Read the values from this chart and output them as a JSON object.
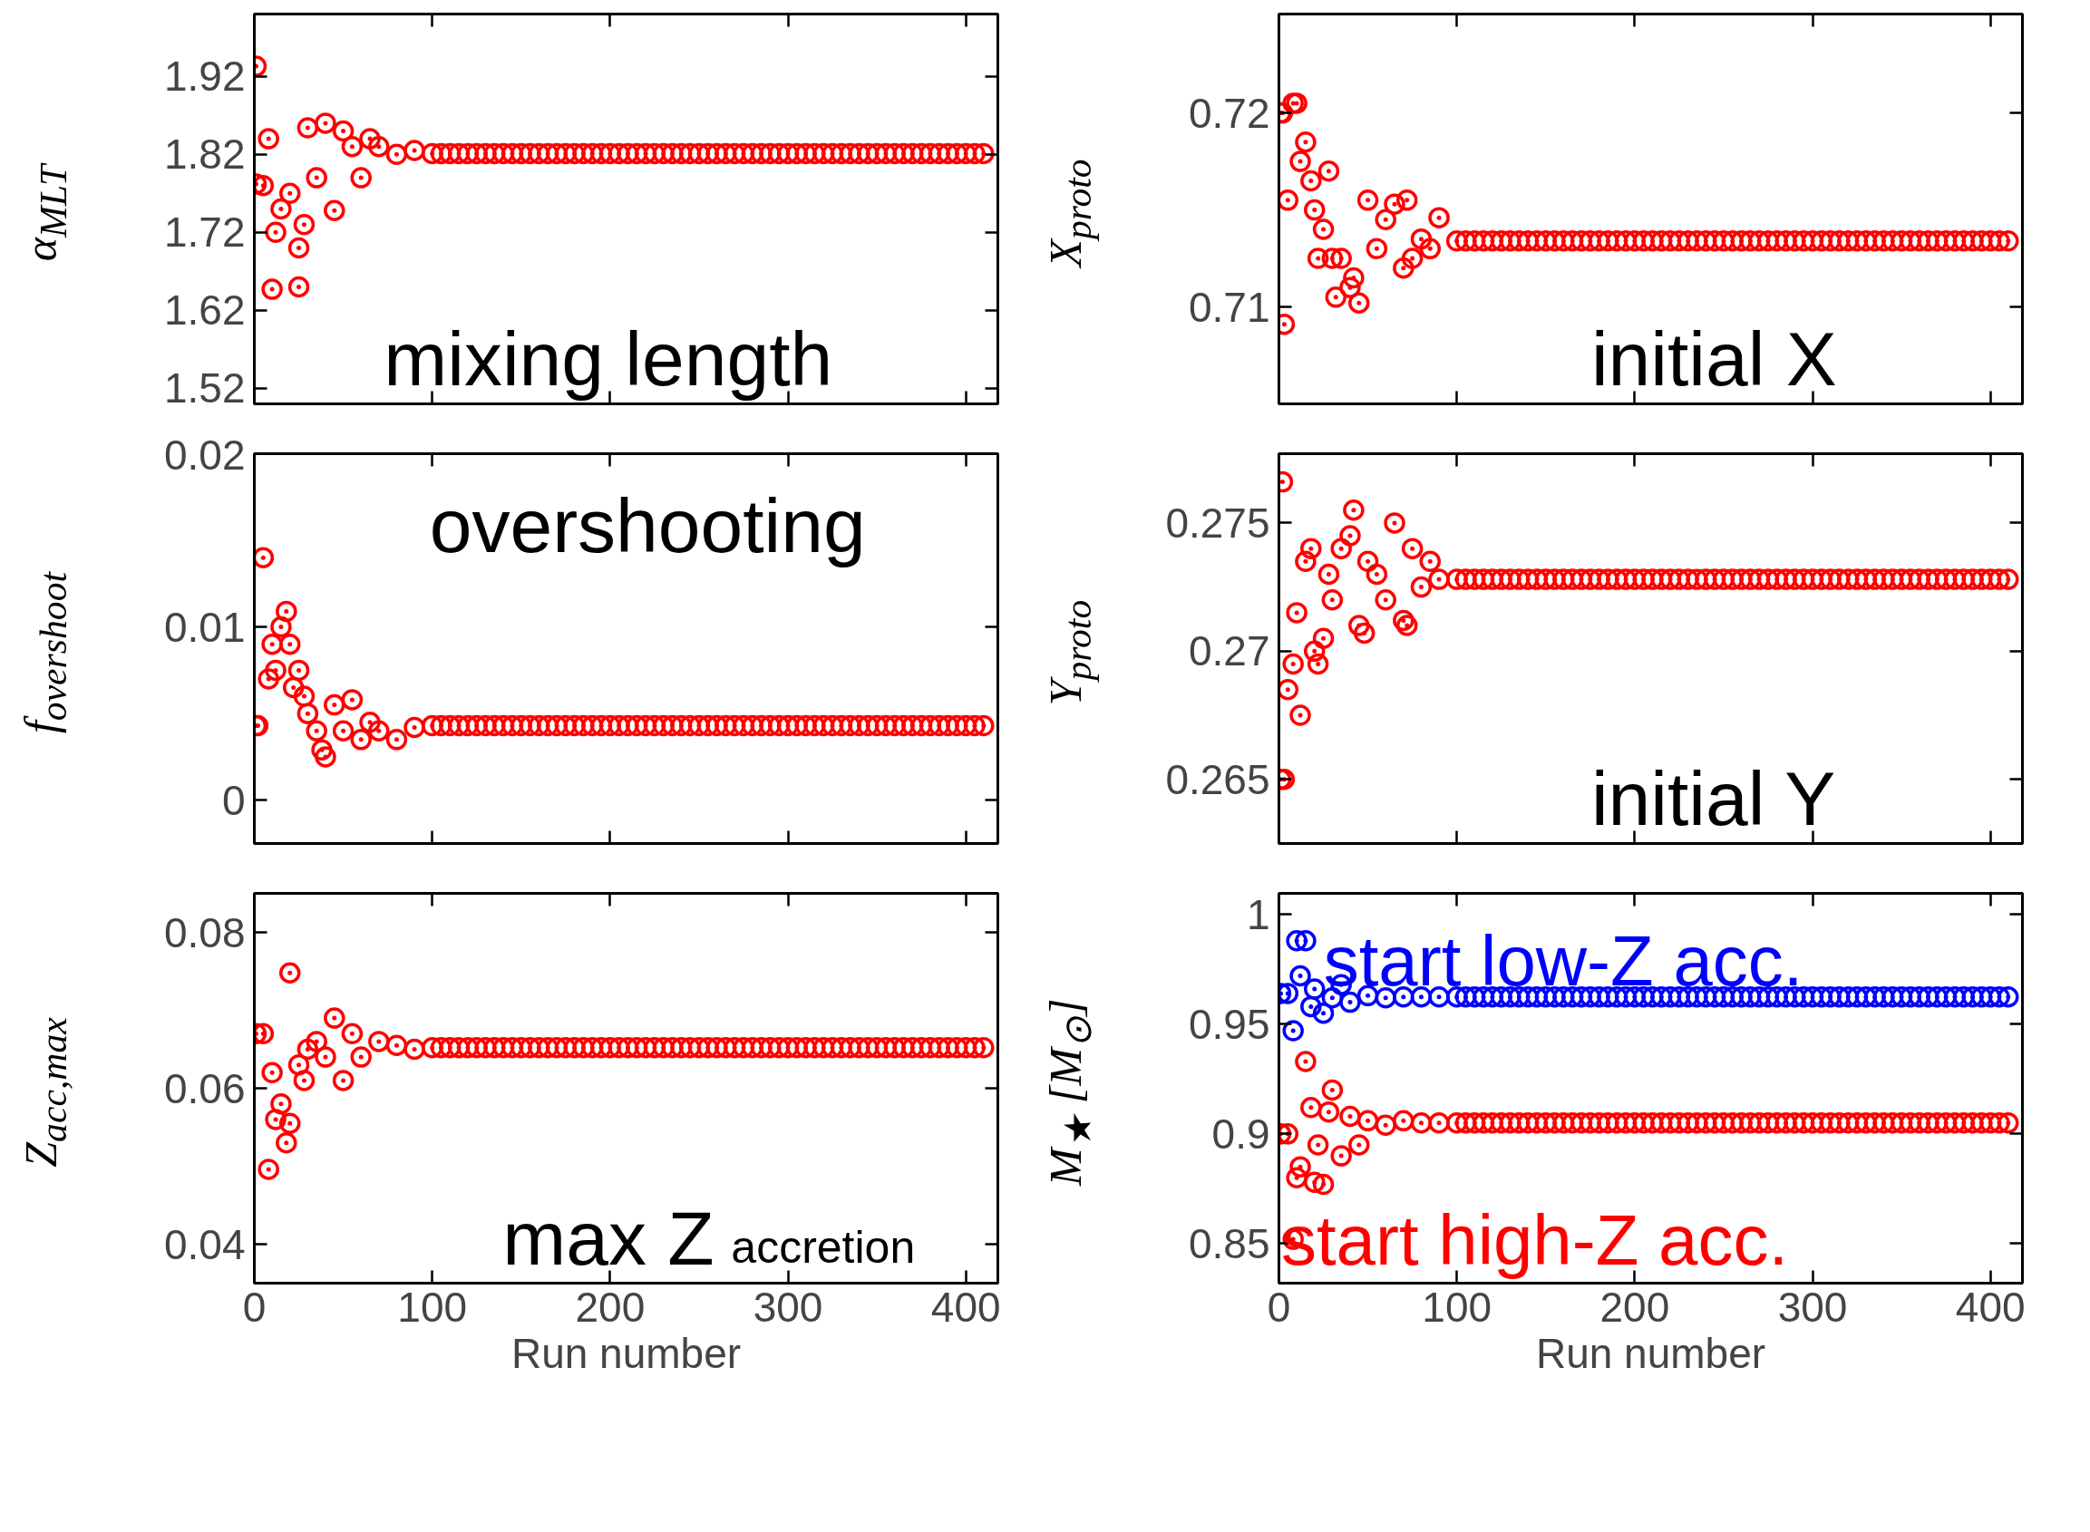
{
  "chart_data": [
    {
      "type": "scatter",
      "ylabel": "α$_{MLT}$",
      "annotations": [
        "mixing length"
      ],
      "marker": "circle",
      "color": "#ff0000",
      "tick_labels": "y",
      "xlim": [
        0,
        418
      ],
      "xticks": [
        0,
        100,
        200,
        300,
        400
      ],
      "ylim": [
        1.5,
        2.0
      ],
      "yticks": [
        1.52,
        1.62,
        1.72,
        1.82,
        1.92
      ],
      "x": [
        1,
        1,
        5,
        8,
        10,
        12,
        15,
        20,
        25,
        25,
        28,
        30,
        35,
        40,
        45,
        50,
        55,
        60,
        65,
        70,
        80,
        90,
        100,
        105,
        110,
        115,
        120,
        125,
        130,
        135,
        140,
        145,
        150,
        155,
        160,
        165,
        170,
        175,
        180,
        185,
        190,
        195,
        200,
        205,
        210,
        215,
        220,
        225,
        230,
        235,
        240,
        245,
        250,
        255,
        260,
        265,
        270,
        275,
        280,
        285,
        290,
        295,
        300,
        305,
        310,
        315,
        320,
        325,
        330,
        335,
        340,
        345,
        350,
        355,
        360,
        365,
        370,
        375,
        380,
        385,
        390,
        395,
        400,
        405,
        410
      ],
      "values": [
        1.933,
        1.782,
        1.78,
        1.84,
        1.647,
        1.72,
        1.75,
        1.77,
        1.65,
        1.7,
        1.73,
        1.854,
        1.79,
        1.86,
        1.748,
        1.85,
        1.83,
        1.79,
        1.84,
        1.83,
        1.82,
        1.825,
        1.821,
        1.821,
        1.821,
        1.821,
        1.821,
        1.821,
        1.821,
        1.821,
        1.821,
        1.821,
        1.821,
        1.821,
        1.821,
        1.821,
        1.821,
        1.821,
        1.821,
        1.821,
        1.821,
        1.821,
        1.821,
        1.821,
        1.821,
        1.821,
        1.821,
        1.821,
        1.821,
        1.821,
        1.821,
        1.821,
        1.821,
        1.821,
        1.821,
        1.821,
        1.821,
        1.821,
        1.821,
        1.821,
        1.821,
        1.821,
        1.821,
        1.821,
        1.821,
        1.821,
        1.821,
        1.821,
        1.821,
        1.821,
        1.821,
        1.821,
        1.821,
        1.821,
        1.821,
        1.821,
        1.821,
        1.821,
        1.821,
        1.821,
        1.821,
        1.821,
        1.821,
        1.821,
        1.821
      ]
    },
    {
      "type": "scatter",
      "ylabel": "X$_{proto}$",
      "annotations": [
        "initial X"
      ],
      "marker": "circle",
      "color": "#ff0000",
      "tick_labels": "y",
      "xlim": [
        0,
        418
      ],
      "xticks": [
        0,
        100,
        200,
        300,
        400
      ],
      "ylim": [
        0.705,
        0.7251
      ],
      "yticks": [
        0.71,
        0.72
      ],
      "x": [
        1,
        2,
        3,
        5,
        8,
        10,
        12,
        15,
        18,
        20,
        22,
        25,
        28,
        30,
        32,
        35,
        40,
        42,
        45,
        50,
        55,
        60,
        65,
        70,
        72,
        75,
        80,
        85,
        90,
        100,
        105,
        110,
        115,
        120,
        125,
        130,
        135,
        140,
        145,
        150,
        155,
        160,
        165,
        170,
        175,
        180,
        185,
        190,
        195,
        200,
        205,
        210,
        215,
        220,
        225,
        230,
        235,
        240,
        245,
        250,
        255,
        260,
        265,
        270,
        275,
        280,
        285,
        290,
        295,
        300,
        305,
        310,
        315,
        320,
        325,
        330,
        335,
        340,
        345,
        350,
        355,
        360,
        365,
        370,
        375,
        380,
        385,
        390,
        395,
        400,
        405,
        410
      ],
      "values": [
        0.72,
        0.72,
        0.7091,
        0.7155,
        0.7205,
        0.7205,
        0.7175,
        0.7185,
        0.7165,
        0.715,
        0.7125,
        0.714,
        0.717,
        0.7125,
        0.7105,
        0.7125,
        0.711,
        0.7115,
        0.7102,
        0.7155,
        0.713,
        0.7145,
        0.7153,
        0.712,
        0.7155,
        0.7125,
        0.7135,
        0.713,
        0.7146,
        0.7134,
        0.7134,
        0.7134,
        0.7134,
        0.7134,
        0.7134,
        0.7134,
        0.7134,
        0.7134,
        0.7134,
        0.7134,
        0.7134,
        0.7134,
        0.7134,
        0.7134,
        0.7134,
        0.7134,
        0.7134,
        0.7134,
        0.7134,
        0.7134,
        0.7134,
        0.7134,
        0.7134,
        0.7134,
        0.7134,
        0.7134,
        0.7134,
        0.7134,
        0.7134,
        0.7134,
        0.7134,
        0.7134,
        0.7134,
        0.7134,
        0.7134,
        0.7134,
        0.7134,
        0.7134,
        0.7134,
        0.7134,
        0.7134,
        0.7134,
        0.7134,
        0.7134,
        0.7134,
        0.7134,
        0.7134,
        0.7134,
        0.7134,
        0.7134,
        0.7134,
        0.7134,
        0.7134,
        0.7134,
        0.7134,
        0.7134,
        0.7134,
        0.7134,
        0.7134,
        0.7134,
        0.7134,
        0.7134
      ]
    },
    {
      "type": "scatter",
      "ylabel": "f$_{overshoot}$",
      "annotations": [
        "overshooting"
      ],
      "marker": "circle",
      "color": "#ff0000",
      "tick_labels": "y",
      "xlim": [
        0,
        418
      ],
      "xticks": [
        0,
        100,
        200,
        300,
        400
      ],
      "ylim": [
        -0.0025,
        0.02
      ],
      "yticks": [
        0,
        0.01,
        0.02
      ],
      "x": [
        1,
        2,
        5,
        8,
        10,
        12,
        15,
        18,
        20,
        22,
        25,
        28,
        30,
        35,
        38,
        40,
        45,
        50,
        55,
        60,
        65,
        70,
        80,
        90,
        100,
        105,
        110,
        115,
        120,
        125,
        130,
        135,
        140,
        145,
        150,
        155,
        160,
        165,
        170,
        175,
        180,
        185,
        190,
        195,
        200,
        205,
        210,
        215,
        220,
        225,
        230,
        235,
        240,
        245,
        250,
        255,
        260,
        265,
        270,
        275,
        280,
        285,
        290,
        295,
        300,
        305,
        310,
        315,
        320,
        325,
        330,
        335,
        340,
        345,
        350,
        355,
        360,
        365,
        370,
        375,
        380,
        385,
        390,
        395,
        400,
        405,
        410
      ],
      "values": [
        0.0043,
        0.0043,
        0.014,
        0.007,
        0.009,
        0.0075,
        0.01,
        0.0109,
        0.009,
        0.0065,
        0.0075,
        0.006,
        0.005,
        0.004,
        0.0029,
        0.0025,
        0.0055,
        0.004,
        0.0058,
        0.0035,
        0.0045,
        0.004,
        0.0035,
        0.0042,
        0.0043,
        0.0043,
        0.0043,
        0.0043,
        0.0043,
        0.0043,
        0.0043,
        0.0043,
        0.0043,
        0.0043,
        0.0043,
        0.0043,
        0.0043,
        0.0043,
        0.0043,
        0.0043,
        0.0043,
        0.0043,
        0.0043,
        0.0043,
        0.0043,
        0.0043,
        0.0043,
        0.0043,
        0.0043,
        0.0043,
        0.0043,
        0.0043,
        0.0043,
        0.0043,
        0.0043,
        0.0043,
        0.0043,
        0.0043,
        0.0043,
        0.0043,
        0.0043,
        0.0043,
        0.0043,
        0.0043,
        0.0043,
        0.0043,
        0.0043,
        0.0043,
        0.0043,
        0.0043,
        0.0043,
        0.0043,
        0.0043,
        0.0043,
        0.0043,
        0.0043,
        0.0043,
        0.0043,
        0.0043,
        0.0043,
        0.0043,
        0.0043,
        0.0043,
        0.0043,
        0.0043,
        0.0043,
        0.0043
      ]
    },
    {
      "type": "scatter",
      "ylabel": "Y$_{proto}$",
      "annotations": [
        "initial Y"
      ],
      "marker": "circle",
      "color": "#ff0000",
      "tick_labels": "y",
      "xlim": [
        0,
        418
      ],
      "xticks": [
        0,
        100,
        200,
        300,
        400
      ],
      "ylim": [
        0.2625,
        0.2777
      ],
      "yticks": [
        0.265,
        0.27,
        0.275
      ],
      "x": [
        1,
        2,
        3,
        5,
        8,
        10,
        12,
        15,
        18,
        20,
        22,
        25,
        28,
        30,
        35,
        40,
        42,
        45,
        48,
        50,
        55,
        60,
        65,
        70,
        72,
        75,
        80,
        85,
        90,
        100,
        105,
        110,
        115,
        120,
        125,
        130,
        135,
        140,
        145,
        150,
        155,
        160,
        165,
        170,
        175,
        180,
        185,
        190,
        195,
        200,
        205,
        210,
        215,
        220,
        225,
        230,
        235,
        240,
        245,
        250,
        255,
        260,
        265,
        270,
        275,
        280,
        285,
        290,
        295,
        300,
        305,
        310,
        315,
        320,
        325,
        330,
        335,
        340,
        345,
        350,
        355,
        360,
        365,
        370,
        375,
        380,
        385,
        390,
        395,
        400,
        405,
        410
      ],
      "values": [
        0.265,
        0.2766,
        0.265,
        0.2685,
        0.2695,
        0.2715,
        0.2675,
        0.2735,
        0.274,
        0.27,
        0.2695,
        0.2705,
        0.273,
        0.272,
        0.274,
        0.2745,
        0.2755,
        0.271,
        0.2707,
        0.2735,
        0.273,
        0.272,
        0.275,
        0.2712,
        0.271,
        0.274,
        0.2725,
        0.2735,
        0.2728,
        0.2728,
        0.2728,
        0.2728,
        0.2728,
        0.2728,
        0.2728,
        0.2728,
        0.2728,
        0.2728,
        0.2728,
        0.2728,
        0.2728,
        0.2728,
        0.2728,
        0.2728,
        0.2728,
        0.2728,
        0.2728,
        0.2728,
        0.2728,
        0.2728,
        0.2728,
        0.2728,
        0.2728,
        0.2728,
        0.2728,
        0.2728,
        0.2728,
        0.2728,
        0.2728,
        0.2728,
        0.2728,
        0.2728,
        0.2728,
        0.2728,
        0.2728,
        0.2728,
        0.2728,
        0.2728,
        0.2728,
        0.2728,
        0.2728,
        0.2728,
        0.2728,
        0.2728,
        0.2728,
        0.2728,
        0.2728,
        0.2728,
        0.2728,
        0.2728,
        0.2728,
        0.2728,
        0.2728,
        0.2728,
        0.2728,
        0.2728,
        0.2728,
        0.2728,
        0.2728,
        0.2728,
        0.2728,
        0.2728
      ]
    },
    {
      "type": "scatter",
      "ylabel": "Z$_{acc,max}$",
      "xlabel": "Run number",
      "annotations": [
        "max Z$_{accretion}$"
      ],
      "marker": "circle",
      "color": "#ff0000",
      "xlim": [
        0,
        418
      ],
      "xticks": [
        0,
        100,
        200,
        300,
        400
      ],
      "ylim": [
        0.035,
        0.085
      ],
      "yticks": [
        0.04,
        0.06,
        0.08
      ],
      "x": [
        1,
        5,
        8,
        10,
        12,
        15,
        18,
        20,
        20,
        25,
        28,
        30,
        35,
        40,
        45,
        50,
        55,
        60,
        70,
        80,
        90,
        100,
        105,
        110,
        115,
        120,
        125,
        130,
        135,
        140,
        145,
        150,
        155,
        160,
        165,
        170,
        175,
        180,
        185,
        190,
        195,
        200,
        205,
        210,
        215,
        220,
        225,
        230,
        235,
        240,
        245,
        250,
        255,
        260,
        265,
        270,
        275,
        280,
        285,
        290,
        295,
        300,
        305,
        310,
        315,
        320,
        325,
        330,
        335,
        340,
        345,
        350,
        355,
        360,
        365,
        370,
        375,
        380,
        385,
        390,
        395,
        400,
        405,
        410
      ],
      "values": [
        0.067,
        0.067,
        0.0496,
        0.062,
        0.056,
        0.058,
        0.053,
        0.0555,
        0.0748,
        0.063,
        0.061,
        0.065,
        0.066,
        0.064,
        0.069,
        0.061,
        0.067,
        0.064,
        0.066,
        0.0655,
        0.065,
        0.0652,
        0.0652,
        0.0652,
        0.0652,
        0.0652,
        0.0652,
        0.0652,
        0.0652,
        0.0652,
        0.0652,
        0.0652,
        0.0652,
        0.0652,
        0.0652,
        0.0652,
        0.0652,
        0.0652,
        0.0652,
        0.0652,
        0.0652,
        0.0652,
        0.0652,
        0.0652,
        0.0652,
        0.0652,
        0.0652,
        0.0652,
        0.0652,
        0.0652,
        0.0652,
        0.0652,
        0.0652,
        0.0652,
        0.0652,
        0.0652,
        0.0652,
        0.0652,
        0.0652,
        0.0652,
        0.0652,
        0.0652,
        0.0652,
        0.0652,
        0.0652,
        0.0652,
        0.0652,
        0.0652,
        0.0652,
        0.0652,
        0.0652,
        0.0652,
        0.0652,
        0.0652,
        0.0652,
        0.0652,
        0.0652,
        0.0652,
        0.0652,
        0.0652,
        0.0652,
        0.0652,
        0.0652,
        0.0652
      ]
    },
    {
      "type": "scatter",
      "ylabel": "M$_{★}$ [M$_{⊙}$]",
      "xlabel": "Run number",
      "marker": "circle",
      "xlim": [
        0,
        418
      ],
      "xticks": [
        0,
        100,
        200,
        300,
        400
      ],
      "ylim": [
        0.832,
        1.0096
      ],
      "yticks": [
        0.85,
        0.9,
        0.95,
        1
      ],
      "series": [
        {
          "name": "start low-Z acc.",
          "color": "#0000ff",
          "x": [
            1,
            5,
            8,
            10,
            12,
            15,
            18,
            20,
            25,
            30,
            35,
            40,
            50,
            60,
            70,
            80,
            90,
            100,
            105,
            110,
            115,
            120,
            125,
            130,
            135,
            140,
            145,
            150,
            155,
            160,
            165,
            170,
            175,
            180,
            185,
            190,
            195,
            200,
            205,
            210,
            215,
            220,
            225,
            230,
            235,
            240,
            245,
            250,
            255,
            260,
            265,
            270,
            275,
            280,
            285,
            290,
            295,
            300,
            305,
            310,
            315,
            320,
            325,
            330,
            335,
            340,
            345,
            350,
            355,
            360,
            365,
            370,
            375,
            380,
            385,
            390,
            395,
            400,
            405,
            410
          ],
          "values": [
            0.964,
            0.964,
            0.947,
            0.988,
            0.972,
            0.988,
            0.958,
            0.966,
            0.955,
            0.962,
            0.968,
            0.96,
            0.963,
            0.962,
            0.9624,
            0.9624,
            0.9624,
            0.9624,
            0.9624,
            0.9624,
            0.9624,
            0.9624,
            0.9624,
            0.9624,
            0.9624,
            0.9624,
            0.9624,
            0.9624,
            0.9624,
            0.9624,
            0.9624,
            0.9624,
            0.9624,
            0.9624,
            0.9624,
            0.9624,
            0.9624,
            0.9624,
            0.9624,
            0.9624,
            0.9624,
            0.9624,
            0.9624,
            0.9624,
            0.9624,
            0.9624,
            0.9624,
            0.9624,
            0.9624,
            0.9624,
            0.9624,
            0.9624,
            0.9624,
            0.9624,
            0.9624,
            0.9624,
            0.9624,
            0.9624,
            0.9624,
            0.9624,
            0.9624,
            0.9624,
            0.9624,
            0.9624,
            0.9624,
            0.9624,
            0.9624,
            0.9624,
            0.9624,
            0.9624,
            0.9624,
            0.9624,
            0.9624,
            0.9624,
            0.9624,
            0.9624,
            0.9624,
            0.9624,
            0.9624,
            0.9624
          ]
        },
        {
          "name": "start high-Z acc.",
          "color": "#ff0000",
          "x": [
            1,
            5,
            8,
            10,
            12,
            15,
            18,
            20,
            22,
            25,
            28,
            30,
            35,
            40,
            45,
            50,
            60,
            70,
            80,
            90,
            100,
            105,
            110,
            115,
            120,
            125,
            130,
            135,
            140,
            145,
            150,
            155,
            160,
            165,
            170,
            175,
            180,
            185,
            190,
            195,
            200,
            205,
            210,
            215,
            220,
            225,
            230,
            235,
            240,
            245,
            250,
            255,
            260,
            265,
            270,
            275,
            280,
            285,
            290,
            295,
            300,
            305,
            310,
            315,
            320,
            325,
            330,
            335,
            340,
            345,
            350,
            355,
            360,
            365,
            370,
            375,
            380,
            385,
            390,
            395,
            400,
            405,
            410
          ],
          "values": [
            0.9,
            0.9,
            0.852,
            0.88,
            0.885,
            0.933,
            0.912,
            0.878,
            0.895,
            0.877,
            0.91,
            0.92,
            0.89,
            0.908,
            0.895,
            0.906,
            0.904,
            0.906,
            0.905,
            0.905,
            0.905,
            0.905,
            0.905,
            0.905,
            0.905,
            0.905,
            0.905,
            0.905,
            0.905,
            0.905,
            0.905,
            0.905,
            0.905,
            0.905,
            0.905,
            0.905,
            0.905,
            0.905,
            0.905,
            0.905,
            0.905,
            0.905,
            0.905,
            0.905,
            0.905,
            0.905,
            0.905,
            0.905,
            0.905,
            0.905,
            0.905,
            0.905,
            0.905,
            0.905,
            0.905,
            0.905,
            0.905,
            0.905,
            0.905,
            0.905,
            0.905,
            0.905,
            0.905,
            0.905,
            0.905,
            0.905,
            0.905,
            0.905,
            0.905,
            0.905,
            0.905,
            0.905,
            0.905,
            0.905,
            0.905,
            0.905,
            0.905,
            0.905,
            0.905,
            0.905,
            0.905,
            0.905,
            0.905
          ]
        }
      ]
    }
  ]
}
